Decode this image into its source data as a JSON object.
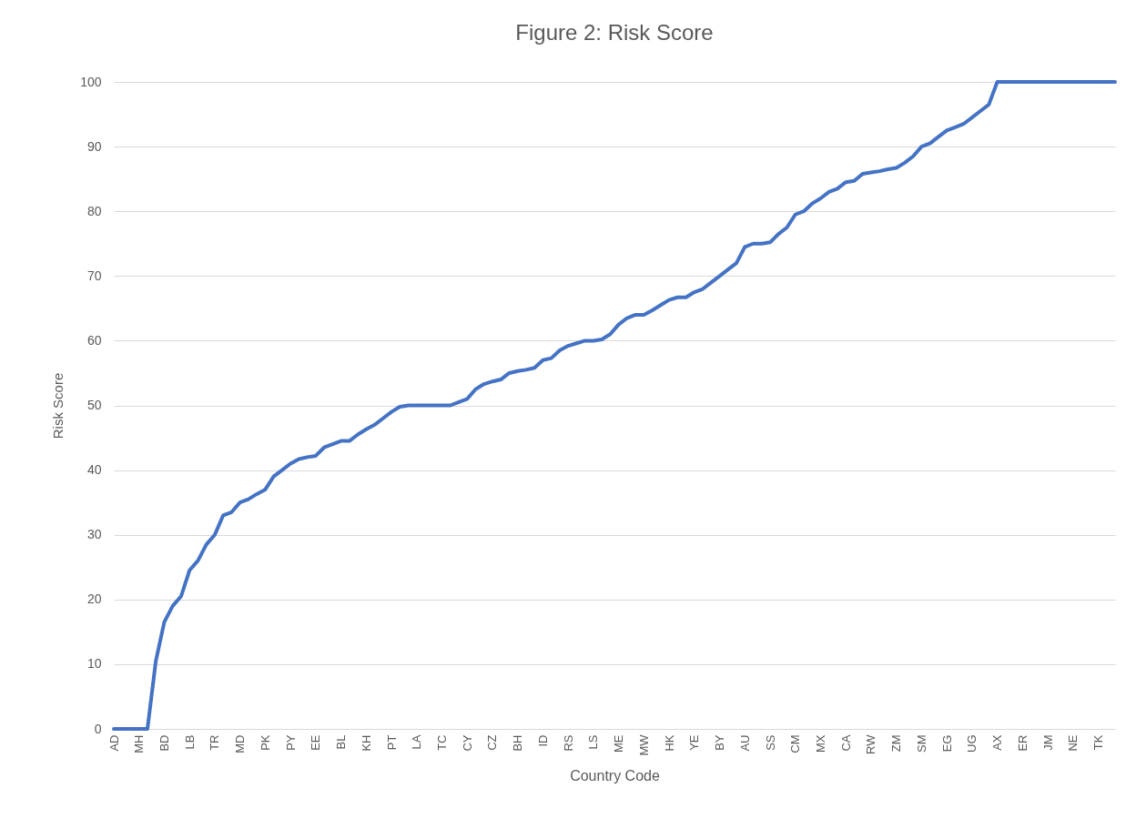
{
  "chart_data": {
    "type": "line",
    "title": "Figure 2: Risk Score",
    "xlabel": "Country Code",
    "ylabel": "Risk Score",
    "categories": [
      "AD",
      null,
      null,
      "MH",
      null,
      null,
      "BD",
      null,
      null,
      "LB",
      null,
      null,
      "TR",
      null,
      null,
      "MD",
      null,
      null,
      "PK",
      null,
      null,
      "PY",
      null,
      null,
      "EE",
      null,
      null,
      "BL",
      null,
      null,
      "KH",
      null,
      null,
      "PT",
      null,
      null,
      "LA",
      null,
      null,
      "TC",
      null,
      null,
      "CY",
      null,
      null,
      "CZ",
      null,
      null,
      "BH",
      null,
      null,
      "ID",
      null,
      null,
      "RS",
      null,
      null,
      "LS",
      null,
      null,
      "ME",
      null,
      null,
      "MW",
      null,
      null,
      "HK",
      null,
      null,
      "YE",
      null,
      null,
      "BY",
      null,
      null,
      "AU",
      null,
      null,
      "SS",
      null,
      null,
      "CM",
      null,
      null,
      "MX",
      null,
      null,
      "CA",
      null,
      null,
      "RW",
      null,
      null,
      "ZM",
      null,
      null,
      "SM",
      null,
      null,
      "EG",
      null,
      null,
      "UG",
      null,
      null,
      "AX",
      null,
      null,
      "ER",
      null,
      null,
      "JM",
      null,
      null,
      "NE",
      null,
      null,
      "TK",
      null,
      null
    ],
    "series": [
      {
        "color": "#4472c4",
        "values": [
          0,
          0,
          0,
          0,
          0,
          10.5,
          16.5,
          19,
          20.5,
          24.5,
          26,
          28.5,
          30,
          33,
          33.5,
          35,
          35.5,
          36.3,
          37,
          39,
          40,
          41,
          41.7,
          42,
          42.2,
          43.5,
          44,
          44.5,
          44.5,
          45.5,
          46.3,
          47,
          48,
          49,
          49.8,
          50,
          50,
          50,
          50,
          50,
          50,
          50.5,
          51,
          52.5,
          53.3,
          53.7,
          54,
          55,
          55.3,
          55.5,
          55.8,
          57,
          57.3,
          58.5,
          59.2,
          59.6,
          60,
          60,
          60.2,
          61,
          62.5,
          63.5,
          64,
          64,
          64.7,
          65.5,
          66.3,
          66.7,
          66.7,
          67.5,
          68,
          69,
          70,
          71,
          72,
          74.5,
          75,
          75,
          75.2,
          76.5,
          77.5,
          79.5,
          80,
          81.2,
          82,
          83,
          83.5,
          84.5,
          84.7,
          85.8,
          86,
          86.2,
          86.5,
          86.7,
          87.5,
          88.5,
          90,
          90.5,
          91.5,
          92.5,
          93,
          93.5,
          94.5,
          95.5,
          96.5,
          100,
          100,
          100,
          100,
          100,
          100,
          100,
          100,
          100,
          100,
          100,
          100,
          100,
          100,
          100
        ]
      }
    ],
    "ylim": [
      0,
      100
    ],
    "yticks": [
      0,
      10,
      20,
      30,
      40,
      50,
      60,
      70,
      80,
      90,
      100
    ],
    "grid": "y",
    "line_style": "solid",
    "marker": "none"
  }
}
